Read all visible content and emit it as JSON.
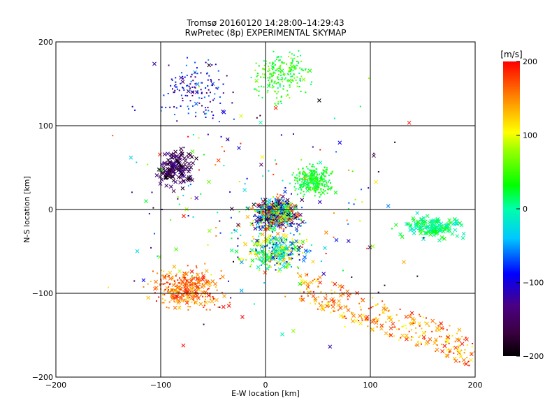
{
  "chart_data": {
    "type": "scatter",
    "title": "Tromsø 20160120 14:28:00–14:29:43",
    "subtitle": "RwPretec (8p) EXPERIMENTAL SKYMAP",
    "xlabel": "E-W location [km]",
    "ylabel": "N-S location [km]",
    "xlim": [
      -200,
      200
    ],
    "ylim": [
      -200,
      200
    ],
    "x_ticks": [
      -200,
      -100,
      0,
      100,
      200
    ],
    "y_ticks": [
      -200,
      -100,
      0,
      100,
      200
    ],
    "x_tick_labels": [
      "−200",
      "−100",
      "0",
      "100",
      "200"
    ],
    "y_tick_labels": [
      "−200",
      "−100",
      "0",
      "100",
      "200"
    ],
    "grid": true,
    "colorbar": {
      "label": "[m/s]",
      "range": [
        -200,
        200
      ],
      "ticks": [
        -200,
        -100,
        0,
        100,
        200
      ],
      "tick_labels": [
        "−200",
        "−100",
        "0",
        "100",
        "200"
      ],
      "colormap": "rainbow (black-purple-blue-cyan-green-yellow-orange-red)"
    },
    "marker_types": [
      "dot",
      "cross"
    ],
    "clusters": [
      {
        "region": "north-west of centre",
        "x_range": [
          -110,
          -20
        ],
        "y_range": [
          90,
          195
        ],
        "dominant_values": [
          -150,
          -50
        ],
        "marker": "dot",
        "density": "moderate"
      },
      {
        "region": "north of centre",
        "x_range": [
          -20,
          50
        ],
        "y_range": [
          120,
          200
        ],
        "dominant_values": [
          0,
          80
        ],
        "marker": "dot",
        "density": "sparse"
      },
      {
        "region": "centre",
        "x_range": [
          -20,
          40
        ],
        "y_range": [
          -30,
          20
        ],
        "dominant_values": [
          -200,
          200
        ],
        "marker": "both",
        "density": "very dense"
      },
      {
        "region": "north-east of centre",
        "x_range": [
          20,
          70
        ],
        "y_range": [
          10,
          60
        ],
        "dominant_values": [
          0,
          60
        ],
        "marker": "dot",
        "density": "dense"
      },
      {
        "region": "centre-south",
        "x_range": [
          -30,
          50
        ],
        "y_range": [
          -80,
          -20
        ],
        "dominant_values": [
          -100,
          150
        ],
        "marker": "both",
        "density": "dense"
      },
      {
        "region": "east band",
        "x_range": [
          120,
          200
        ],
        "y_range": [
          -40,
          0
        ],
        "dominant_values": [
          -20,
          40
        ],
        "marker": "cross",
        "density": "moderate"
      },
      {
        "region": "south-east diagonal",
        "x_range": [
          30,
          200
        ],
        "y_range": [
          -190,
          -90
        ],
        "dominant_values": [
          100,
          200
        ],
        "marker": "both",
        "density": "dense"
      },
      {
        "region": "south-west",
        "x_range": [
          -120,
          -30
        ],
        "y_range": [
          -130,
          -60
        ],
        "dominant_values": [
          120,
          200
        ],
        "marker": "both",
        "density": "dense"
      },
      {
        "region": "west / north-west",
        "x_range": [
          -110,
          -60
        ],
        "y_range": [
          20,
          80
        ],
        "dominant_values": [
          -200,
          -120
        ],
        "marker": "cross",
        "density": "moderate"
      },
      {
        "region": "background",
        "x_range": [
          -200,
          200
        ],
        "y_range": [
          -200,
          200
        ],
        "dominant_values": [
          -200,
          200
        ],
        "marker": "both",
        "density": "sparse"
      }
    ]
  }
}
